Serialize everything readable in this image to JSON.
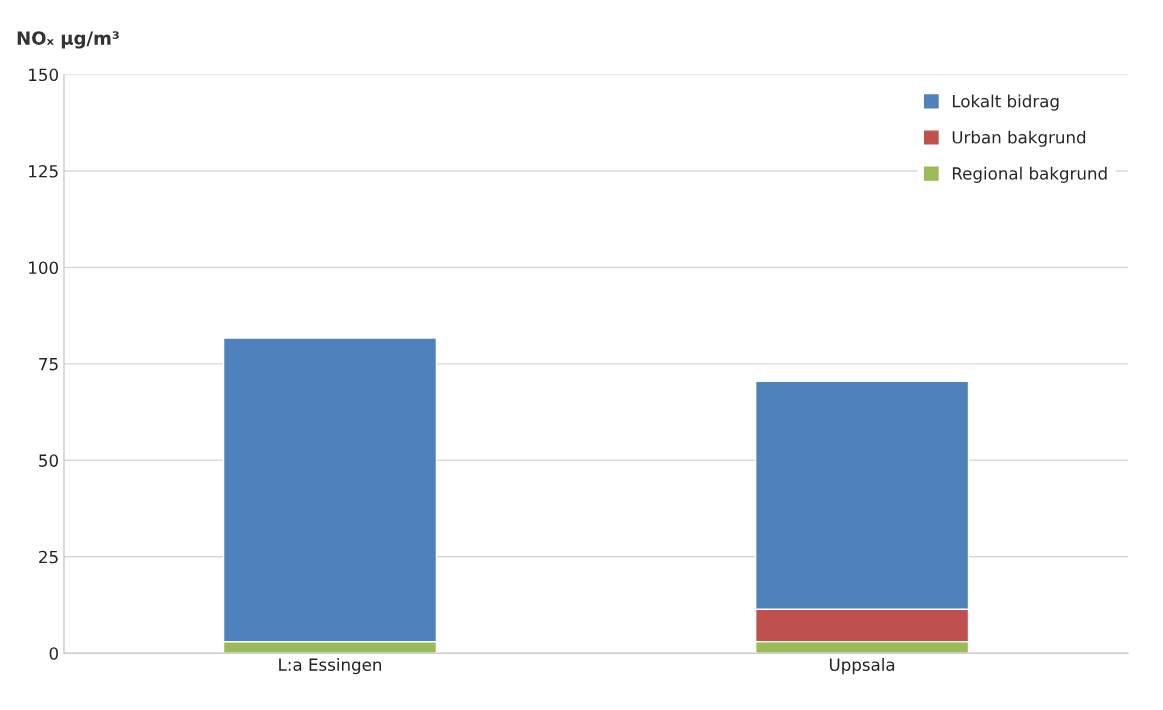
{
  "chart_data": {
    "type": "bar",
    "ylabel": "NOₓ µg/m³",
    "categories": [
      "L:a Essingen",
      "Uppsala"
    ],
    "stacked": true,
    "series": [
      {
        "name": "Regional bakgrund",
        "color": "#9bbb59",
        "values": [
          3.0,
          3.0
        ]
      },
      {
        "name": "Urban bakgrund",
        "color": "#c0504d",
        "values": [
          0,
          8.4
        ]
      },
      {
        "name": "Lokalt bidrag",
        "color": "#4f81bd",
        "values": [
          78.7,
          59.1
        ]
      }
    ],
    "ylim": [
      0,
      150
    ],
    "yticks": [
      0,
      25,
      50,
      75,
      100,
      125,
      150
    ],
    "grid": "y",
    "legend": "top right"
  }
}
